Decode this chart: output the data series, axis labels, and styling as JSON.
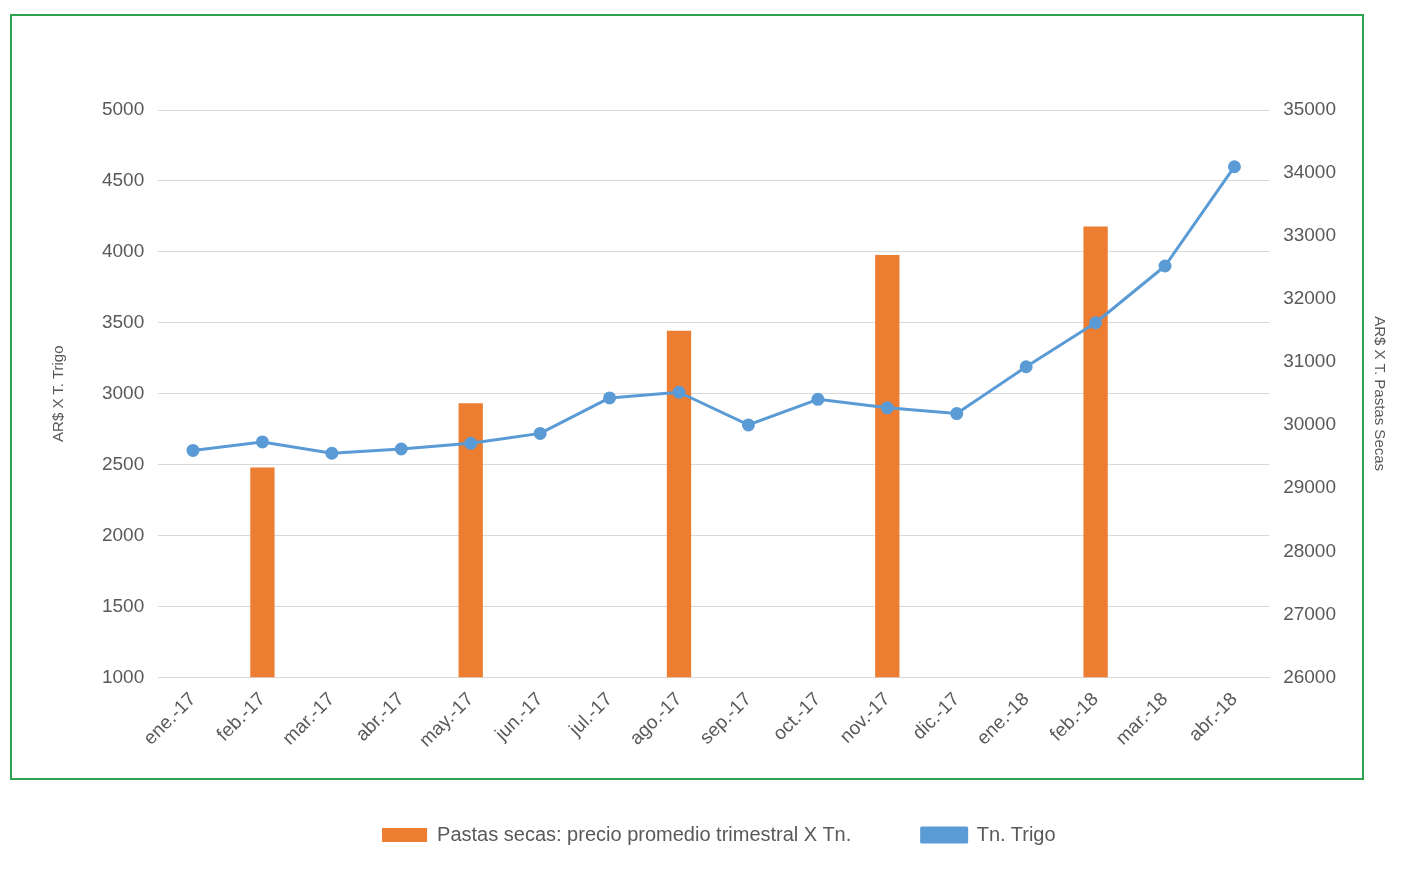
{
  "chart_data": {
    "type": "bar",
    "categories": [
      "ene.-17",
      "feb.-17",
      "mar.-17",
      "abr.-17",
      "may.-17",
      "jun.-17",
      "jul.-17",
      "ago.-17",
      "sep.-17",
      "oct.-17",
      "nov.-17",
      "dic.-17",
      "ene.-18",
      "feb.-18",
      "mar.-18",
      "abr.-18"
    ],
    "series": [
      {
        "name": "Pastas secas: precio promedio trimestral X Tn.",
        "axis": "y2",
        "color": "#ed7d31",
        "values": [
          null,
          29330,
          null,
          null,
          30350,
          null,
          null,
          31500,
          null,
          null,
          32700,
          null,
          null,
          33150,
          null,
          null
        ]
      },
      {
        "name": "Tn. Trigo",
        "type": "line",
        "color": "#5b9bd5",
        "values": [
          2600,
          2660,
          2580,
          2610,
          2650,
          2720,
          2970,
          3010,
          2780,
          2960,
          2900,
          2860,
          3190,
          3500,
          3900,
          4600
        ]
      }
    ],
    "ylabel": "AR$ X T. Trigo",
    "y2label": "AR$ X T. Pastas Secas",
    "ylim": [
      1000,
      5000
    ],
    "yticks": [
      1000,
      1500,
      2000,
      2500,
      3000,
      3500,
      4000,
      4500,
      5000
    ],
    "y2lim": [
      26000,
      35000
    ],
    "y2ticks": [
      26000,
      27000,
      28000,
      29000,
      30000,
      31000,
      32000,
      33000,
      34000,
      35000
    ],
    "grid": "y",
    "legend": "bottom",
    "marker": "circle"
  }
}
